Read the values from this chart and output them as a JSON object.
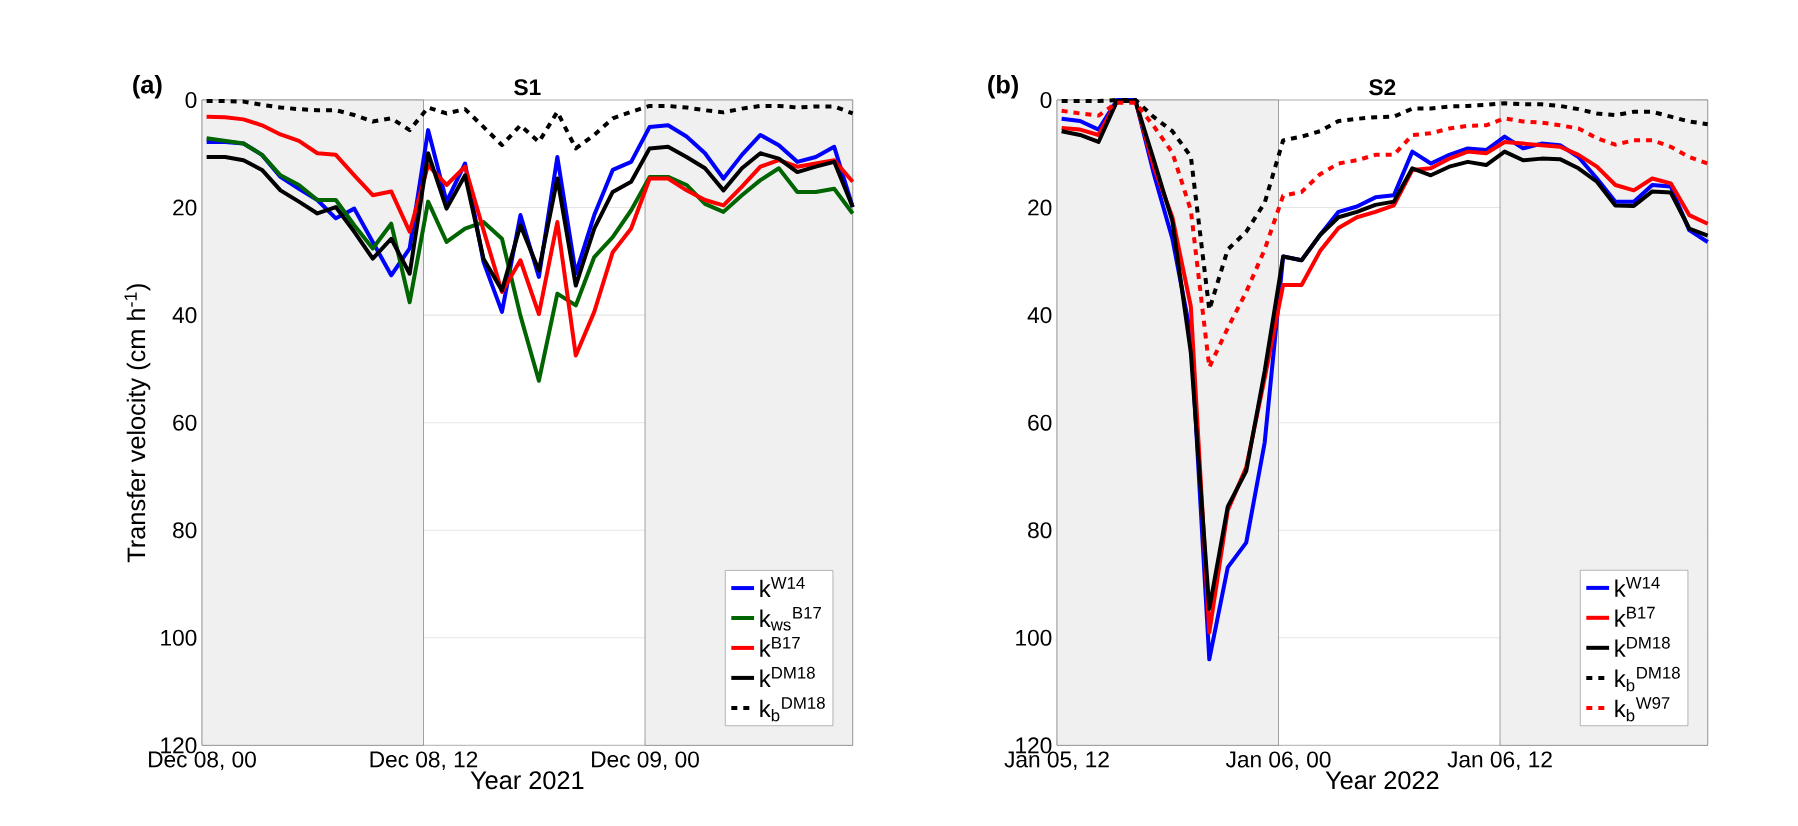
{
  "chart_data": [
    {
      "type": "line",
      "title": "S1",
      "annotations": [
        "(a)"
      ],
      "xlabel": "Year 2021",
      "ylabel": "Transfer velocity (cm h$^{-1}$)",
      "x": [
        "2021-12-08T00:15",
        "2021-12-08T01:15",
        "2021-12-08T02:15",
        "2021-12-08T03:15",
        "2021-12-08T04:15",
        "2021-12-08T05:15",
        "2021-12-08T06:15",
        "2021-12-08T07:15",
        "2021-12-08T08:15",
        "2021-12-08T09:15",
        "2021-12-08T10:15",
        "2021-12-08T11:15",
        "2021-12-08T12:15",
        "2021-12-08T13:15",
        "2021-12-08T14:15",
        "2021-12-08T15:15",
        "2021-12-08T16:15",
        "2021-12-08T17:15",
        "2021-12-08T18:15",
        "2021-12-08T19:15",
        "2021-12-08T20:15",
        "2021-12-08T21:15",
        "2021-12-08T22:15",
        "2021-12-08T23:15",
        "2021-12-09T00:15",
        "2021-12-09T01:15",
        "2021-12-09T02:15",
        "2021-12-09T03:15",
        "2021-12-09T04:15",
        "2021-12-09T05:15",
        "2021-12-09T06:15",
        "2021-12-09T07:15",
        "2021-12-09T08:15",
        "2021-12-09T09:15",
        "2021-12-09T10:15",
        "2021-12-09T11:15"
      ],
      "xlim": [
        "2021-12-08T00:00",
        "2021-12-09T11:15"
      ],
      "xticks": [
        {
          "value": "2021-12-08T00:00",
          "label": "Dec 08, 00"
        },
        {
          "value": "2021-12-08T12:00",
          "label": "Dec 08, 12"
        },
        {
          "value": "2021-12-09T00:00",
          "label": "Dec 09, 00"
        }
      ],
      "ylim": [
        120,
        0
      ],
      "yticks": [
        0,
        20,
        40,
        60,
        80,
        100,
        120
      ],
      "grid": "y",
      "legend": "bottom right",
      "bands": [
        {
          "axis": "x",
          "from": "2021-12-08T00:00",
          "to": "2021-12-08T12:00",
          "color": "#f0f0f0"
        },
        {
          "axis": "x",
          "from": "2021-12-09T00:00",
          "to": "2021-12-09T11:15",
          "color": "#f0f0f0"
        }
      ],
      "series": [
        {
          "name": "k$^{W14}$",
          "color": "#0000ff",
          "line_style": "solid",
          "values": [
            7.8,
            7.8,
            8.1,
            10.2,
            14.3,
            16.5,
            18.6,
            22,
            20.2,
            26.4,
            32.6,
            27.6,
            5.6,
            18.9,
            11.8,
            30.1,
            39.4,
            21.4,
            32.9,
            10.6,
            32.3,
            21.4,
            13,
            11.5,
            5,
            4.7,
            6.8,
            9.9,
            14.6,
            10.2,
            6.5,
            8.4,
            11.5,
            10.6,
            8.7,
            19.9
          ]
        },
        {
          "name": "k$_{ws}$$^{B17}$",
          "color": "#006400",
          "line_style": "solid",
          "values": [
            7.1,
            7.6,
            8.1,
            10.2,
            14,
            15.8,
            18.6,
            18.6,
            23.3,
            27.6,
            23,
            37.6,
            18.9,
            26.4,
            23.9,
            22.7,
            25.8,
            40.1,
            52.2,
            36,
            38.2,
            29.2,
            25.5,
            20.5,
            14.3,
            14.3,
            15.8,
            19.3,
            20.8,
            17.7,
            14.9,
            12.7,
            17.1,
            17.1,
            16.5,
            21.1
          ]
        },
        {
          "name": "k$^{B17}$",
          "color": "#ff0000",
          "line_style": "solid",
          "values": [
            3.1,
            3.2,
            3.6,
            4.7,
            6.4,
            7.6,
            9.9,
            10.2,
            14,
            17.7,
            17,
            24.5,
            12.1,
            15.8,
            12.4,
            24.2,
            35.7,
            29.8,
            39.8,
            22.7,
            47.5,
            39.4,
            28.3,
            23.9,
            14.6,
            14.6,
            16.8,
            18.6,
            19.6,
            16.1,
            12.4,
            11.2,
            12.4,
            11.8,
            11.2,
            15.2
          ]
        },
        {
          "name": "k$^{DM18}$",
          "color": "#000000",
          "line_style": "solid",
          "values": [
            10.6,
            10.6,
            11.2,
            13,
            16.8,
            18.9,
            21.1,
            19.9,
            24.5,
            29.5,
            25.8,
            32.3,
            9.9,
            20.2,
            14,
            29.5,
            35.4,
            23.3,
            31.7,
            14.6,
            34.5,
            23.9,
            17.1,
            15.2,
            9,
            8.7,
            10.6,
            12.7,
            16.8,
            12.7,
            9.9,
            10.9,
            13.4,
            12.4,
            11.5,
            19.9
          ]
        },
        {
          "name": "k$_{b}$$^{DM18}$",
          "color": "#000000",
          "line_style": "dotted",
          "values": [
            0.2,
            0.2,
            0.3,
            0.9,
            1.4,
            1.7,
            1.9,
            1.9,
            2.8,
            4,
            3.4,
            5.6,
            1.4,
            2.5,
            1.7,
            5,
            8.4,
            4.7,
            7.8,
            2.2,
            9,
            6.5,
            3.4,
            2.2,
            1.1,
            1.1,
            1.4,
            1.9,
            2.3,
            1.6,
            1.1,
            1.1,
            1.4,
            1.2,
            1.2,
            2.5
          ]
        }
      ]
    },
    {
      "type": "line",
      "title": "S2",
      "annotations": [
        "(b)"
      ],
      "xlabel": "Year 2022",
      "x": [
        "2022-01-05T12:15",
        "2022-01-05T13:15",
        "2022-01-05T14:15",
        "2022-01-05T15:15",
        "2022-01-05T16:15",
        "2022-01-05T17:15",
        "2022-01-05T18:15",
        "2022-01-05T19:15",
        "2022-01-05T20:15",
        "2022-01-05T21:15",
        "2022-01-05T22:15",
        "2022-01-05T23:15",
        "2022-01-06T00:15",
        "2022-01-06T01:15",
        "2022-01-06T02:15",
        "2022-01-06T03:15",
        "2022-01-06T04:15",
        "2022-01-06T05:15",
        "2022-01-06T06:15",
        "2022-01-06T07:15",
        "2022-01-06T08:15",
        "2022-01-06T09:15",
        "2022-01-06T10:15",
        "2022-01-06T11:15",
        "2022-01-06T12:15",
        "2022-01-06T13:15",
        "2022-01-06T14:15",
        "2022-01-06T15:15",
        "2022-01-06T16:15",
        "2022-01-06T17:15",
        "2022-01-06T18:15",
        "2022-01-06T19:15",
        "2022-01-06T20:15",
        "2022-01-06T21:15",
        "2022-01-06T22:15",
        "2022-01-06T23:15"
      ],
      "xlim": [
        "2022-01-05T12:00",
        "2022-01-06T23:15"
      ],
      "xticks": [
        {
          "value": "2022-01-05T12:00",
          "label": "Jan 05, 12"
        },
        {
          "value": "2022-01-06T00:00",
          "label": "Jan 06, 00"
        },
        {
          "value": "2022-01-06T12:00",
          "label": "Jan 06, 12"
        }
      ],
      "ylim": [
        120,
        0
      ],
      "yticks": [
        0,
        20,
        40,
        60,
        80,
        100,
        120
      ],
      "grid": "y",
      "legend": "bottom right",
      "bands": [
        {
          "axis": "x",
          "from": "2022-01-05T12:00",
          "to": "2022-01-06T00:00",
          "color": "#f0f0f0"
        },
        {
          "axis": "x",
          "from": "2022-01-06T12:00",
          "to": "2022-01-06T23:15",
          "color": "#f0f0f0"
        }
      ],
      "series": [
        {
          "name": "k$^{W14}$",
          "color": "#0000ff",
          "line_style": "solid",
          "values": [
            3.5,
            3.9,
            5.5,
            0,
            0,
            13.8,
            25.8,
            43.7,
            104,
            86.9,
            82.3,
            63.7,
            29.1,
            29.8,
            25.1,
            20.8,
            19.8,
            18.1,
            17.7,
            9.6,
            11.8,
            10.2,
            9,
            9.3,
            6.8,
            9,
            8.1,
            8.4,
            10.6,
            14.6,
            18.9,
            18.9,
            15.8,
            16.1,
            24.2,
            26.4
          ]
        },
        {
          "name": "k$^{B17}$",
          "color": "#ff0000",
          "line_style": "solid",
          "values": [
            5.2,
            5.5,
            6.5,
            0.2,
            0.2,
            12.5,
            21.8,
            38.4,
            99,
            76.3,
            68.3,
            51.7,
            34.4,
            34.4,
            28.1,
            23.8,
            21.8,
            20.8,
            19.6,
            13,
            12.7,
            10.9,
            9.6,
            9.9,
            7.8,
            8.1,
            8.4,
            8.7,
            10.2,
            12.4,
            15.8,
            16.8,
            14.6,
            15.5,
            21.4,
            23
          ]
        },
        {
          "name": "k$^{DM18}$",
          "color": "#000000",
          "line_style": "solid",
          "values": [
            5.8,
            6.5,
            7.8,
            0.2,
            0.2,
            11.2,
            22.5,
            47,
            94.6,
            75.6,
            69,
            50.4,
            29.1,
            29.8,
            25.1,
            21.8,
            20.8,
            19.5,
            18.9,
            12.7,
            14,
            12.4,
            11.5,
            12.1,
            9.6,
            11.2,
            10.9,
            11,
            12.7,
            15.2,
            19.6,
            19.7,
            17,
            17.2,
            23.9,
            25.2
          ]
        },
        {
          "name": "k$_{b}$$^{DM18}$",
          "color": "#000000",
          "line_style": "dotted",
          "values": [
            0.2,
            0.2,
            0.2,
            0,
            0,
            3.2,
            5.8,
            10.5,
            39,
            27.8,
            24.5,
            19.1,
            7.5,
            6.8,
            5.8,
            3.9,
            3.5,
            3.2,
            3.1,
            1.6,
            1.6,
            1.2,
            1.1,
            0.9,
            0.6,
            0.8,
            0.8,
            1.1,
            1.7,
            2.5,
            2.8,
            2.2,
            2.2,
            3.1,
            4,
            4.5
          ]
        },
        {
          "name": "k$_{b}$$^{W97}$",
          "color": "#ff0000",
          "line_style": "dotted",
          "values": [
            2,
            2.5,
            2.9,
            0.5,
            0.5,
            4.9,
            9.8,
            20.5,
            49.7,
            42.4,
            35.7,
            27.8,
            17.8,
            17.1,
            13.8,
            11.8,
            11.2,
            10.2,
            10.2,
            6.5,
            6.2,
            5.3,
            4.8,
            4.7,
            3.4,
            4,
            4.2,
            4.7,
            5.3,
            7.1,
            8.3,
            7.5,
            7.5,
            8.7,
            10.6,
            11.8
          ]
        }
      ]
    }
  ]
}
